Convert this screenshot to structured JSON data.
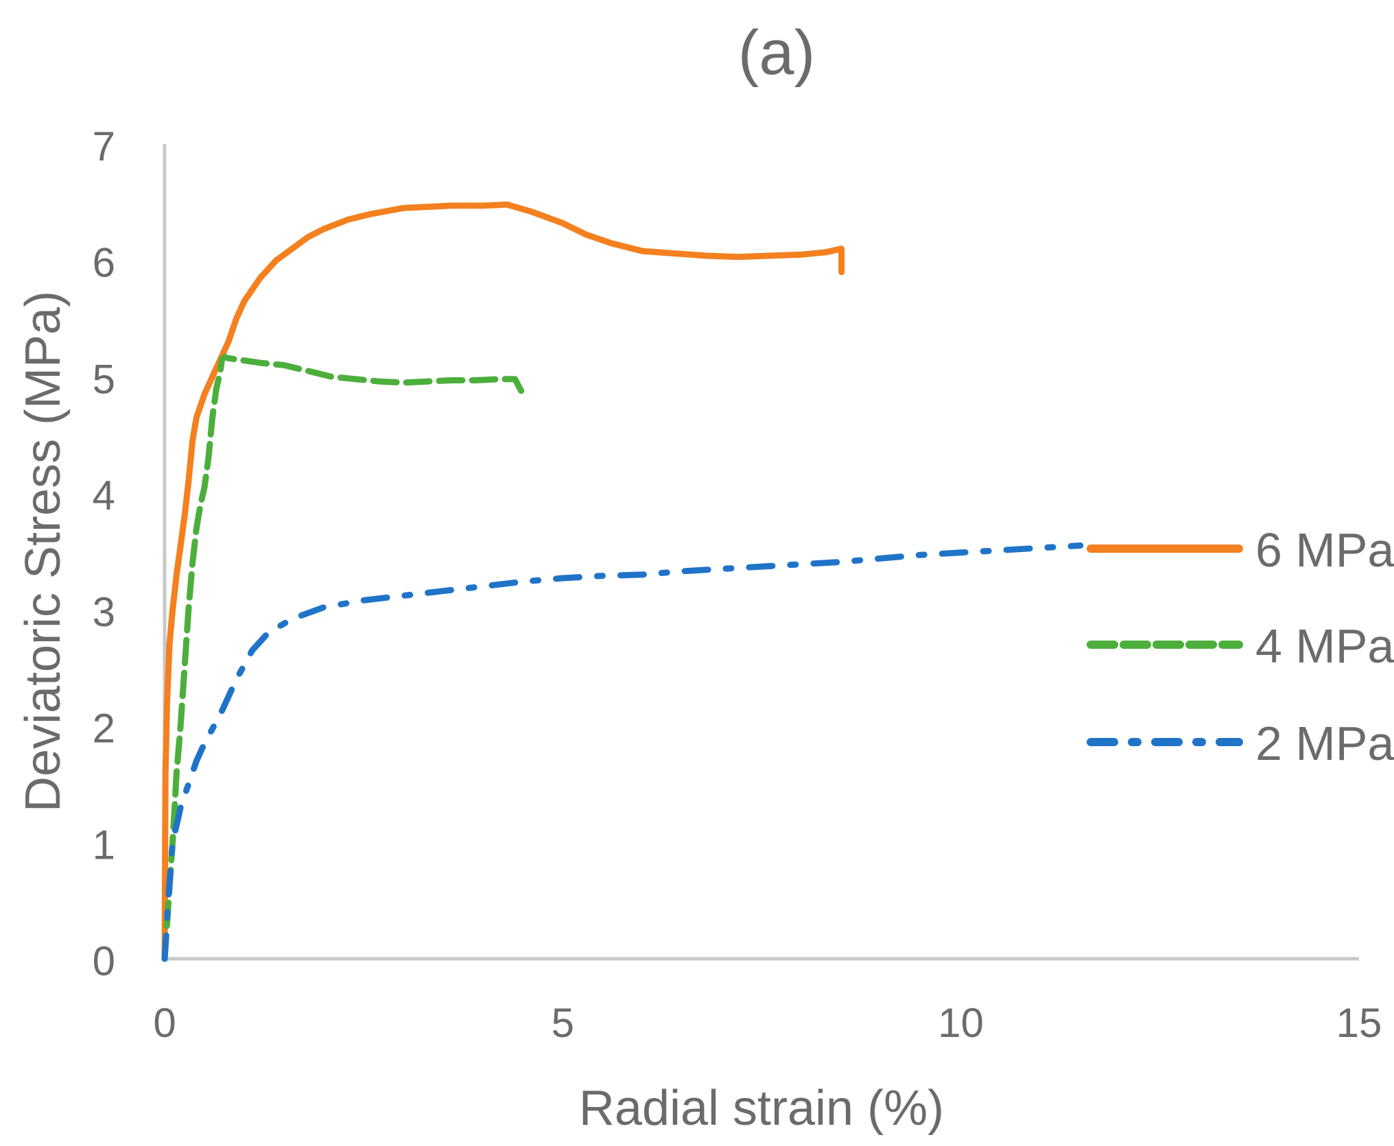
{
  "chart_data": {
    "type": "line",
    "title": "(a)",
    "xlabel": "Radial strain (%)",
    "ylabel": "Deviatoric Stress (MPa)",
    "xlim": [
      0,
      15
    ],
    "ylim": [
      0,
      7
    ],
    "xticks": [
      0,
      5,
      10,
      15
    ],
    "yticks": [
      0,
      1,
      2,
      3,
      4,
      5,
      6,
      7
    ],
    "grid": false,
    "legend_position": "right",
    "series": [
      {
        "name": "6 MPa",
        "color": "#f4801f",
        "dash": "solid",
        "x": [
          0,
          0.01,
          0.03,
          0.06,
          0.1,
          0.15,
          0.2,
          0.25,
          0.3,
          0.35,
          0.4,
          0.5,
          0.6,
          0.7,
          0.8,
          0.9,
          1.0,
          1.2,
          1.4,
          1.6,
          1.8,
          2.0,
          2.3,
          2.6,
          3.0,
          3.3,
          3.6,
          4.0,
          4.3,
          4.6,
          5.0,
          5.3,
          5.6,
          6.0,
          6.4,
          6.8,
          7.2,
          7.6,
          8.0,
          8.3,
          8.5,
          8.5
        ],
        "y": [
          0,
          1.6,
          2.2,
          2.7,
          3.0,
          3.3,
          3.55,
          3.8,
          4.1,
          4.45,
          4.65,
          4.85,
          5.0,
          5.15,
          5.3,
          5.5,
          5.65,
          5.85,
          6.0,
          6.1,
          6.2,
          6.27,
          6.35,
          6.4,
          6.45,
          6.46,
          6.47,
          6.47,
          6.48,
          6.42,
          6.32,
          6.22,
          6.15,
          6.08,
          6.06,
          6.04,
          6.03,
          6.04,
          6.05,
          6.07,
          6.1,
          5.9
        ]
      },
      {
        "name": "4 MPa",
        "color": "#4caf3c",
        "dash": "dashed",
        "x": [
          0,
          0.05,
          0.1,
          0.15,
          0.2,
          0.25,
          0.3,
          0.35,
          0.4,
          0.45,
          0.5,
          0.55,
          0.6,
          0.65,
          0.7,
          0.72,
          0.75,
          0.8,
          0.9,
          1.0,
          1.2,
          1.5,
          1.8,
          2.1,
          2.4,
          2.7,
          3.0,
          3.3,
          3.6,
          3.9,
          4.2,
          4.4,
          4.5
        ],
        "y": [
          0,
          0.5,
          1.0,
          1.6,
          2.0,
          2.5,
          3.0,
          3.4,
          3.7,
          3.9,
          4.05,
          4.3,
          4.65,
          4.9,
          5.05,
          5.15,
          5.17,
          5.16,
          5.15,
          5.14,
          5.12,
          5.1,
          5.05,
          5.0,
          4.98,
          4.96,
          4.95,
          4.96,
          4.97,
          4.97,
          4.98,
          4.98,
          4.85
        ]
      },
      {
        "name": "2 MPa",
        "color": "#2074c8",
        "dash": "dash-dot",
        "x": [
          0,
          0.05,
          0.1,
          0.2,
          0.3,
          0.4,
          0.5,
          0.7,
          0.9,
          1.1,
          1.3,
          1.6,
          2.0,
          2.5,
          3.0,
          3.5,
          4.0,
          4.5,
          5.0,
          5.5,
          6.0,
          6.5,
          7.0,
          7.5,
          8.0,
          8.5,
          9.0,
          9.5,
          10.0,
          10.5,
          11.0,
          11.5
        ],
        "y": [
          0,
          0.55,
          1.0,
          1.3,
          1.5,
          1.7,
          1.85,
          2.1,
          2.4,
          2.65,
          2.8,
          2.92,
          3.02,
          3.08,
          3.12,
          3.16,
          3.2,
          3.24,
          3.27,
          3.29,
          3.3,
          3.33,
          3.35,
          3.37,
          3.39,
          3.41,
          3.44,
          3.47,
          3.49,
          3.51,
          3.53,
          3.55
        ]
      }
    ]
  }
}
